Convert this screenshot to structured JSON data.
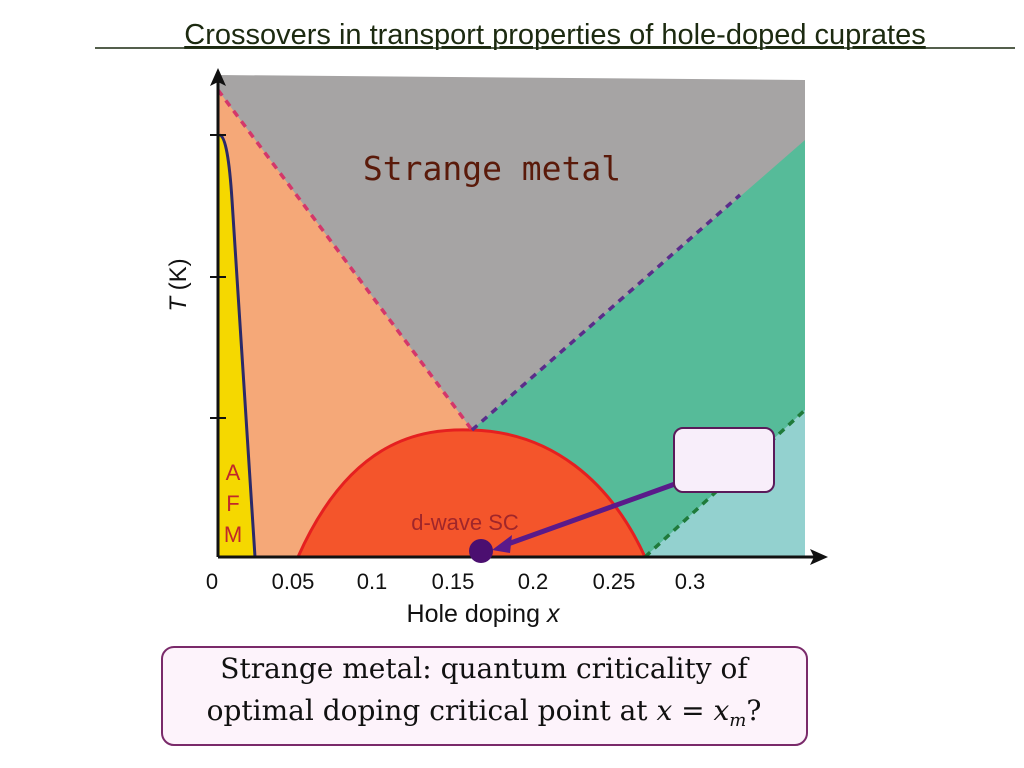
{
  "header": {
    "title": "Crossovers in transport properties of hole-doped cuprates"
  },
  "diagram": {
    "region_label": "Strange metal",
    "afm_letters": [
      "A",
      "F",
      "M"
    ],
    "sc_label": "d-wave SC",
    "y_axis_var": "T",
    "y_axis_unit": "(K)",
    "x_axis_text": "Hole doping",
    "x_axis_var": "x",
    "x_tick_labels": [
      "0",
      "0.05",
      "0.1",
      "0.15",
      "0.2",
      "0.25",
      "0.3"
    ]
  },
  "note": {
    "line1": "Strange metal: quantum criticality of",
    "line2_text": "optimal doping critical point at",
    "line2_math": "x = x",
    "line2_sub": "m",
    "line2_end": "?"
  }
}
